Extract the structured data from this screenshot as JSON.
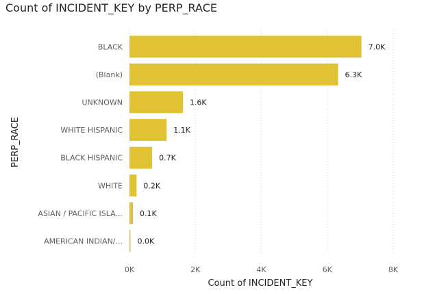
{
  "chart_data": {
    "type": "bar",
    "orientation": "horizontal",
    "title": "Count of INCIDENT_KEY by PERP_RACE",
    "xlabel": "Count of INCIDENT_KEY",
    "ylabel": "PERP_RACE",
    "categories": [
      "BLACK",
      "(Blank)",
      "UNKNOWN",
      "WHITE HISPANIC",
      "BLACK HISPANIC",
      "WHITE",
      "ASIAN / PACIFIC ISLA...",
      "AMERICAN INDIAN/..."
    ],
    "values": [
      7036,
      6327,
      1619,
      1126,
      688,
      215,
      105,
      9
    ],
    "data_labels": [
      "7.0K",
      "6.3K",
      "1.6K",
      "1.1K",
      "0.7K",
      "0.2K",
      "0.1K",
      "0.0K"
    ],
    "xlim": [
      0,
      8000
    ],
    "xticks": [
      0,
      2000,
      4000,
      6000,
      8000
    ],
    "xtick_labels": [
      "0K",
      "2K",
      "4K",
      "6K",
      "8K"
    ],
    "grid": "vertical dotted",
    "bar_color": "#E0C232"
  }
}
